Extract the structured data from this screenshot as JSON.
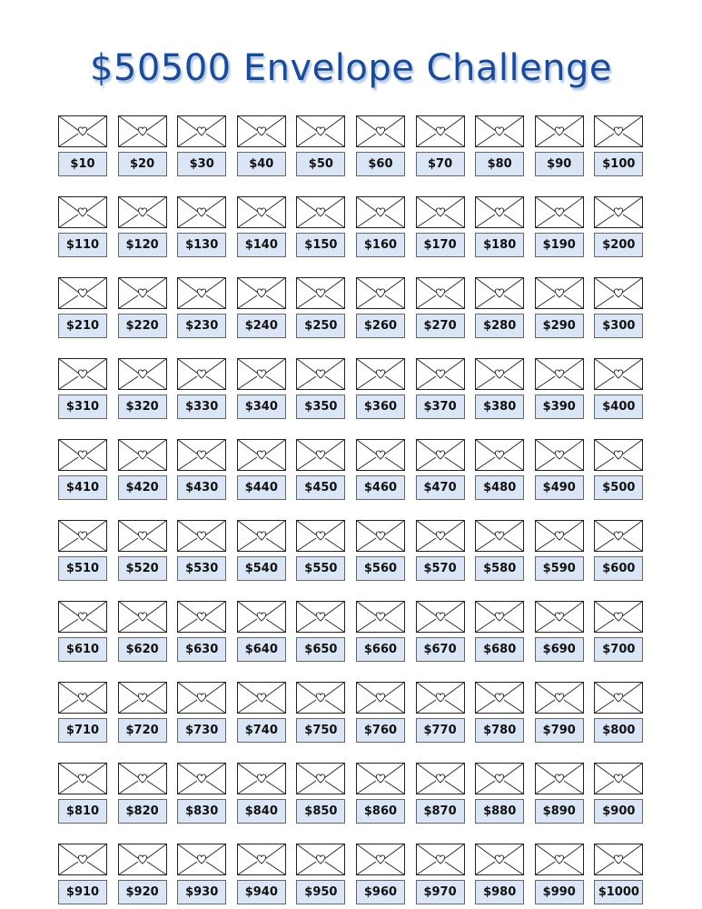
{
  "title": "$50500 Envelope Challenge",
  "colors": {
    "title": "#1d4a94",
    "title_shadow": "#a9c4ec",
    "label_bg": "#dae5f6"
  },
  "envelope_icon": "envelope-with-heart-icon",
  "amounts": [
    "$10",
    "$20",
    "$30",
    "$40",
    "$50",
    "$60",
    "$70",
    "$80",
    "$90",
    "$100",
    "$110",
    "$120",
    "$130",
    "$140",
    "$150",
    "$160",
    "$170",
    "$180",
    "$190",
    "$200",
    "$210",
    "$220",
    "$230",
    "$240",
    "$250",
    "$260",
    "$270",
    "$280",
    "$290",
    "$300",
    "$310",
    "$320",
    "$330",
    "$340",
    "$350",
    "$360",
    "$370",
    "$380",
    "$390",
    "$400",
    "$410",
    "$420",
    "$430",
    "$440",
    "$450",
    "$460",
    "$470",
    "$480",
    "$490",
    "$500",
    "$510",
    "$520",
    "$530",
    "$540",
    "$550",
    "$560",
    "$570",
    "$580",
    "$590",
    "$600",
    "$610",
    "$620",
    "$630",
    "$640",
    "$650",
    "$660",
    "$670",
    "$680",
    "$690",
    "$700",
    "$710",
    "$720",
    "$730",
    "$740",
    "$750",
    "$760",
    "$770",
    "$780",
    "$790",
    "$800",
    "$810",
    "$820",
    "$830",
    "$840",
    "$850",
    "$860",
    "$870",
    "$880",
    "$890",
    "$900",
    "$910",
    "$920",
    "$930",
    "$940",
    "$950",
    "$960",
    "$970",
    "$980",
    "$990",
    "$1000"
  ]
}
